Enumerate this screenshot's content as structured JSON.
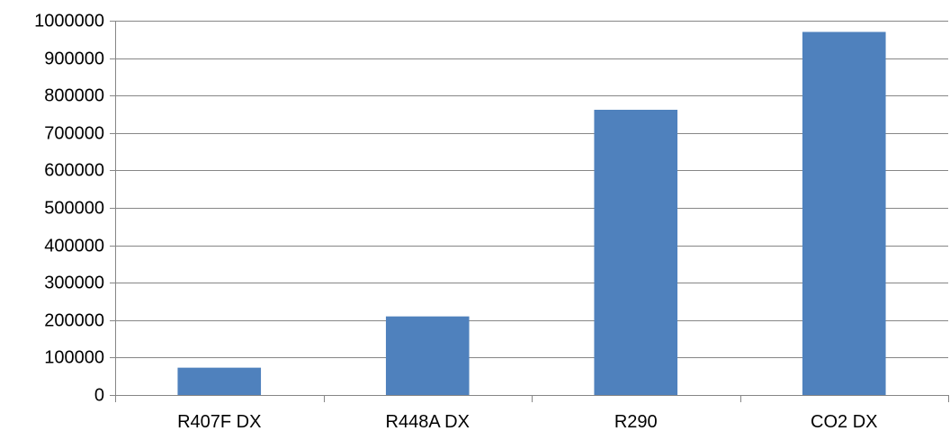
{
  "chart_data": {
    "type": "bar",
    "title": "",
    "xlabel": "",
    "ylabel": "",
    "categories": [
      "R407F DX",
      "R448A DX",
      "R290",
      "CO2 DX"
    ],
    "series": [
      {
        "values": [
          73000,
          210000,
          762000,
          970000
        ],
        "color": "#4F81BD"
      }
    ],
    "ylim": [
      0,
      1000000
    ],
    "yticks": [
      0,
      100000,
      200000,
      300000,
      400000,
      500000,
      600000,
      700000,
      800000,
      900000,
      1000000
    ],
    "ytick_labels": [
      "0",
      "100000",
      "200000",
      "300000",
      "400000",
      "500000",
      "600000",
      "700000",
      "800000",
      "900000",
      "1000000"
    ],
    "grid": true,
    "legend": "none",
    "colors": {
      "grid": "#868686",
      "axis": "#868686",
      "bar": "#4F81BD"
    }
  }
}
